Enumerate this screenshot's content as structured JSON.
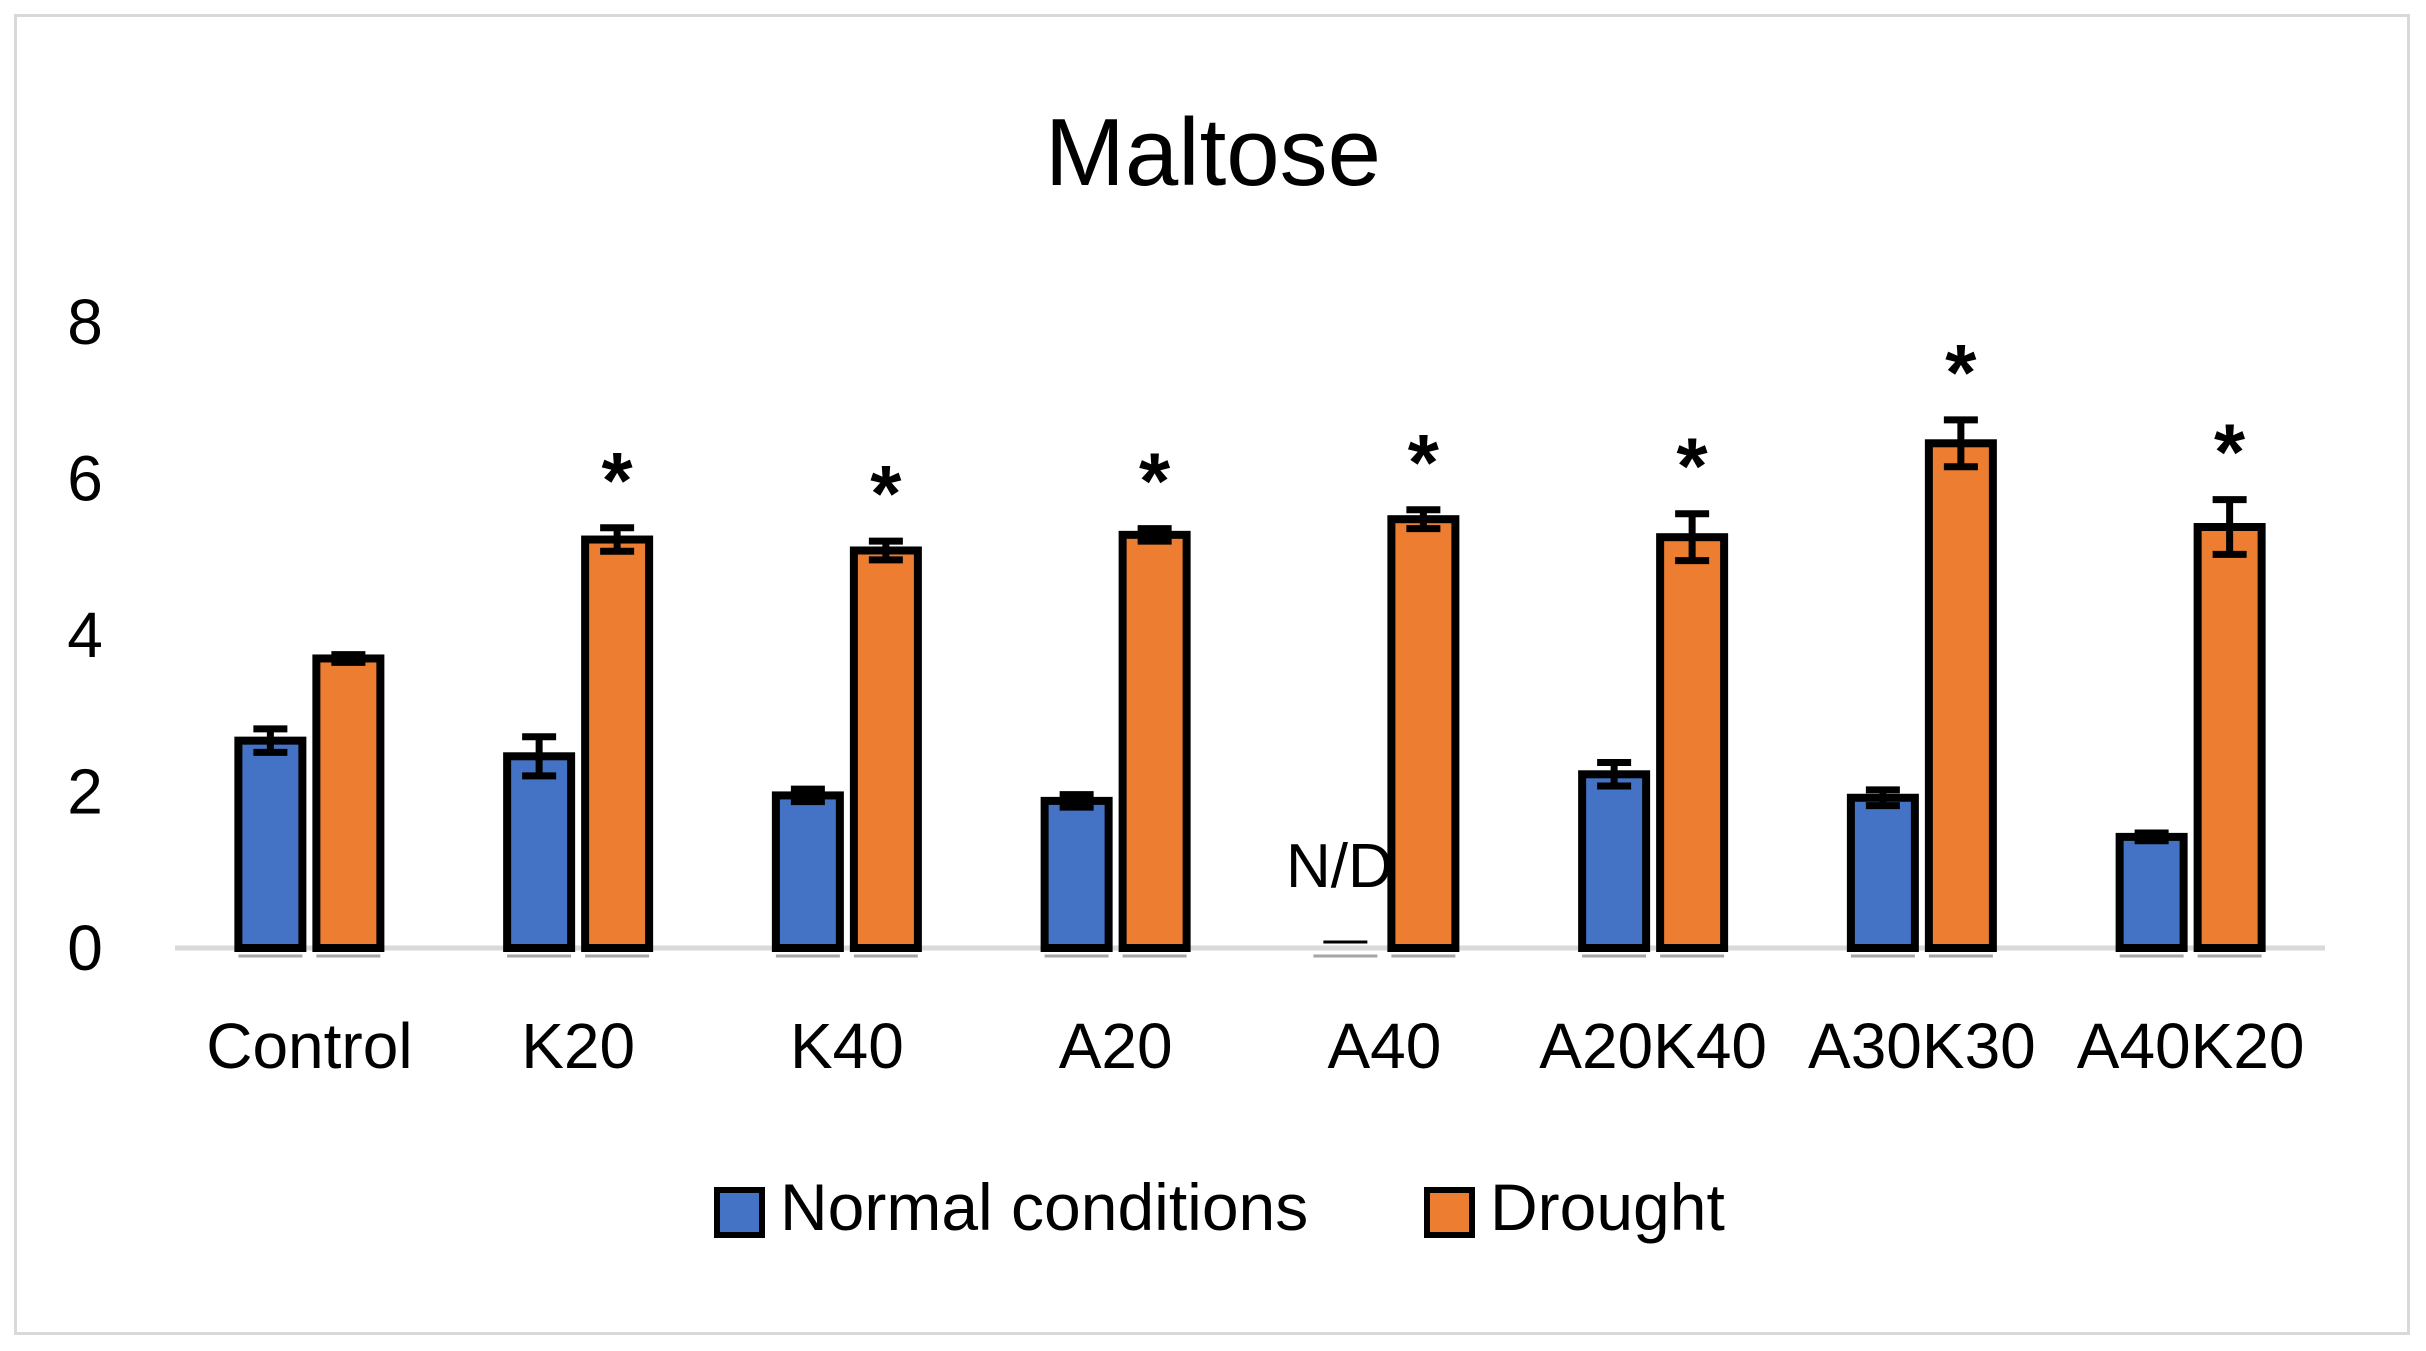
{
  "chart_data": {
    "type": "bar",
    "title": "Maltose",
    "xlabel": "",
    "ylabel": "",
    "ylim": [
      0,
      8
    ],
    "yticks": [
      "0",
      "2",
      "4",
      "6",
      "8"
    ],
    "grid": false,
    "legend_position": "bottom",
    "categories": [
      "Control",
      "K20",
      "K40",
      "A20",
      "A40",
      "A20K40",
      "A30K30",
      "A40K20"
    ],
    "series": [
      {
        "name": "Normal conditions",
        "color": "#4472c4",
        "values": [
          2.65,
          2.45,
          1.95,
          1.88,
          null,
          2.22,
          1.92,
          1.42
        ],
        "errors": [
          0.15,
          0.25,
          0.08,
          0.08,
          null,
          0.15,
          0.1,
          0.05
        ]
      },
      {
        "name": "Drought",
        "color": "#ed7d31",
        "values": [
          3.7,
          5.22,
          5.08,
          5.28,
          5.48,
          5.25,
          6.45,
          5.38
        ],
        "errors": [
          0.05,
          0.15,
          0.12,
          0.08,
          0.12,
          0.3,
          0.3,
          0.35
        ]
      }
    ],
    "annotations": {
      "significance_marker": "*",
      "significant": [
        false,
        true,
        true,
        true,
        true,
        true,
        true,
        true
      ],
      "not_detected_label": "N/D",
      "not_detected_category": "A40"
    }
  }
}
